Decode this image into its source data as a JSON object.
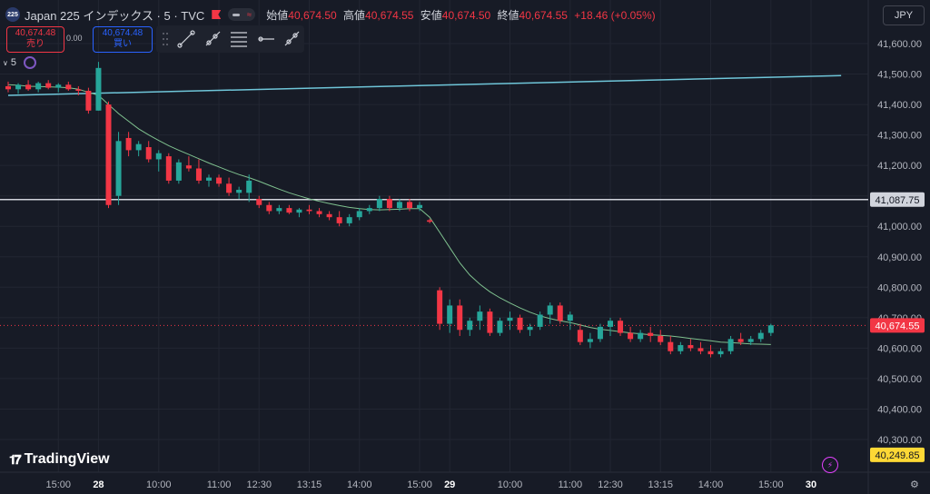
{
  "header": {
    "symbol_badge": "225",
    "symbol_title": "Japan 225 インデックス · 5 · TVC",
    "open_label": "始値",
    "open": "40,674.50",
    "high_label": "高値",
    "high": "40,674.55",
    "low_label": "安値",
    "low": "40,674.50",
    "close_label": "終値",
    "close": "40,674.55",
    "change": "+18.46 (+0.05%)"
  },
  "trade": {
    "sell_price": "40,674.48",
    "sell_label": "売り",
    "spread": "0.00",
    "buy_price": "40,674.48",
    "buy_label": "買い"
  },
  "interval_label": "5",
  "currency_button": "JPY",
  "logo_text": "TradingView",
  "colors": {
    "background": "#171b26",
    "up": "#26a69a",
    "down": "#f23645",
    "ma": "#7fc18f",
    "trendline": "#6fc6d9",
    "hline": "#d1d4dc",
    "grid": "#222632"
  },
  "icons": [
    "flag-icon",
    "toggle-pill-icon",
    "dots-grip-icon",
    "trend-line-icon",
    "ray-icon",
    "fib-lines-icon",
    "horizontal-ray-icon",
    "extended-line-icon",
    "interval-chevron-icon",
    "indicator-gear-icon",
    "bolt-icon",
    "settings-gear-icon"
  ],
  "chart_data": {
    "type": "candlestick",
    "y_axis": {
      "min": 40200,
      "max": 41700,
      "ticks": [
        41600,
        41500,
        41400,
        41300,
        41200,
        41100,
        41000,
        40900,
        40800,
        40700,
        40600,
        40500,
        40400,
        40300
      ],
      "tick_labels": [
        "41,600.00",
        "41,500.00",
        "41,400.00",
        "41,300.00",
        "41,200.00",
        "41,100.00",
        "41,000.00",
        "40,900.00",
        "40,800.00",
        "40,700.00",
        "40,600.00",
        "40,500.00",
        "40,400.00",
        "40,300.00"
      ]
    },
    "x_axis": {
      "labels": [
        {
          "i": 5,
          "t": "15:00",
          "bold": false
        },
        {
          "i": 9,
          "t": "28",
          "bold": true
        },
        {
          "i": 15,
          "t": "10:00",
          "bold": false
        },
        {
          "i": 21,
          "t": "11:00",
          "bold": false
        },
        {
          "i": 25,
          "t": "12:30",
          "bold": false
        },
        {
          "i": 30,
          "t": "13:15",
          "bold": false
        },
        {
          "i": 35,
          "t": "14:00",
          "bold": false
        },
        {
          "i": 41,
          "t": "15:00",
          "bold": false
        },
        {
          "i": 44,
          "t": "29",
          "bold": true
        },
        {
          "i": 50,
          "t": "10:00",
          "bold": false
        },
        {
          "i": 56,
          "t": "11:00",
          "bold": false
        },
        {
          "i": 60,
          "t": "12:30",
          "bold": false
        },
        {
          "i": 65,
          "t": "13:15",
          "bold": false
        },
        {
          "i": 70,
          "t": "14:00",
          "bold": false
        },
        {
          "i": 76,
          "t": "15:00",
          "bold": false
        },
        {
          "i": 80,
          "t": "30",
          "bold": true
        }
      ]
    },
    "price_labels": [
      {
        "value": 41087.75,
        "text": "41,087.75",
        "style": "hline"
      },
      {
        "value": 40674.55,
        "text": "40,674.55",
        "style": "last"
      },
      {
        "value": 40249.85,
        "text": "40,249.85",
        "style": "low"
      }
    ],
    "hlines": [
      41087.75
    ],
    "last_price": 40674.55,
    "trendline": {
      "from": [
        0,
        41430
      ],
      "to": [
        83,
        41495
      ]
    },
    "candles": [
      [
        41460,
        41475,
        41440,
        41450
      ],
      [
        41450,
        41470,
        41435,
        41465
      ],
      [
        41465,
        41480,
        41445,
        41450
      ],
      [
        41450,
        41475,
        41440,
        41470
      ],
      [
        41470,
        41480,
        41450,
        41455
      ],
      [
        41455,
        41470,
        41440,
        41465
      ],
      [
        41465,
        41475,
        41445,
        41450
      ],
      [
        41450,
        41460,
        41430,
        41445
      ],
      [
        41445,
        41455,
        41370,
        41380
      ],
      [
        41380,
        41540,
        41380,
        41520
      ],
      [
        41400,
        41410,
        41060,
        41070
      ],
      [
        41100,
        41310,
        41070,
        41280
      ],
      [
        41290,
        41310,
        41230,
        41250
      ],
      [
        41250,
        41280,
        41230,
        41270
      ],
      [
        41260,
        41280,
        41210,
        41220
      ],
      [
        41220,
        41250,
        41180,
        41240
      ],
      [
        41230,
        41240,
        41140,
        41150
      ],
      [
        41150,
        41220,
        41140,
        41210
      ],
      [
        41200,
        41230,
        41180,
        41190
      ],
      [
        41190,
        41220,
        41140,
        41150
      ],
      [
        41150,
        41170,
        41130,
        41160
      ],
      [
        41160,
        41170,
        41130,
        41140
      ],
      [
        41140,
        41160,
        41100,
        41110
      ],
      [
        41110,
        41130,
        41090,
        41120
      ],
      [
        41110,
        41170,
        41080,
        41150
      ],
      [
        41090,
        41100,
        41060,
        41070
      ],
      [
        41070,
        41080,
        41040,
        41050
      ],
      [
        41050,
        41070,
        41040,
        41060
      ],
      [
        41060,
        41070,
        41040,
        41045
      ],
      [
        41045,
        41060,
        41030,
        41055
      ],
      [
        41055,
        41070,
        41040,
        41050
      ],
      [
        41050,
        41060,
        41030,
        41040
      ],
      [
        41040,
        41050,
        41020,
        41030
      ],
      [
        41030,
        41050,
        41000,
        41010
      ],
      [
        41010,
        41040,
        41000,
        41030
      ],
      [
        41030,
        41060,
        41020,
        41050
      ],
      [
        41050,
        41070,
        41040,
        41060
      ],
      [
        41060,
        41100,
        41050,
        41090
      ],
      [
        41090,
        41100,
        41050,
        41060
      ],
      [
        41060,
        41090,
        41050,
        41080
      ],
      [
        41080,
        41090,
        41050,
        41060
      ],
      [
        41060,
        41080,
        41050,
        41070
      ],
      [
        41020,
        41025,
        41010,
        41015
      ],
      [
        40790,
        40800,
        40660,
        40680
      ],
      [
        40680,
        40760,
        40650,
        40740
      ],
      [
        40740,
        40760,
        40640,
        40660
      ],
      [
        40660,
        40700,
        40640,
        40690
      ],
      [
        40690,
        40740,
        40660,
        40720
      ],
      [
        40720,
        40730,
        40640,
        40650
      ],
      [
        40650,
        40700,
        40640,
        40690
      ],
      [
        40690,
        40720,
        40660,
        40700
      ],
      [
        40700,
        40710,
        40650,
        40660
      ],
      [
        40660,
        40680,
        40640,
        40670
      ],
      [
        40670,
        40720,
        40660,
        40710
      ],
      [
        40710,
        40750,
        40680,
        40740
      ],
      [
        40740,
        40750,
        40680,
        40690
      ],
      [
        40690,
        40720,
        40660,
        40710
      ],
      [
        40660,
        40680,
        40610,
        40620
      ],
      [
        40620,
        40650,
        40600,
        40630
      ],
      [
        40630,
        40680,
        40620,
        40670
      ],
      [
        40670,
        40700,
        40640,
        40690
      ],
      [
        40690,
        40700,
        40640,
        40650
      ],
      [
        40650,
        40670,
        40620,
        40630
      ],
      [
        40630,
        40660,
        40620,
        40650
      ],
      [
        40650,
        40670,
        40620,
        40640
      ],
      [
        40640,
        40660,
        40610,
        40620
      ],
      [
        40620,
        40640,
        40580,
        40590
      ],
      [
        40590,
        40620,
        40580,
        40610
      ],
      [
        40610,
        40630,
        40590,
        40600
      ],
      [
        40600,
        40620,
        40580,
        40590
      ],
      [
        40590,
        40610,
        40570,
        40580
      ],
      [
        40580,
        40600,
        40570,
        40590
      ],
      [
        40590,
        40640,
        40580,
        40630
      ],
      [
        40630,
        40650,
        40610,
        40620
      ],
      [
        40620,
        40640,
        40610,
        40630
      ],
      [
        40630,
        40660,
        40620,
        40650
      ],
      [
        40650,
        40680,
        40640,
        40675
      ]
    ],
    "ma": [
      41465,
      41463,
      41460,
      41459,
      41458,
      41457,
      41455,
      41450,
      41440,
      41430,
      41400,
      41370,
      41345,
      41320,
      41300,
      41282,
      41265,
      41250,
      41236,
      41222,
      41208,
      41195,
      41182,
      41170,
      41160,
      41148,
      41135,
      41122,
      41110,
      41100,
      41090,
      41082,
      41075,
      41068,
      41062,
      41058,
      41055,
      41054,
      41055,
      41056,
      41058,
      41058,
      41030,
      40980,
      40930,
      40880,
      40840,
      40810,
      40785,
      40765,
      40748,
      40732,
      40718,
      40706,
      40697,
      40690,
      40684,
      40676,
      40668,
      40662,
      40658,
      40654,
      40650,
      40647,
      40644,
      40642,
      40640,
      40636,
      40632,
      40628,
      40624,
      40620,
      40618,
      40616,
      40614,
      40613,
      40612
    ]
  }
}
